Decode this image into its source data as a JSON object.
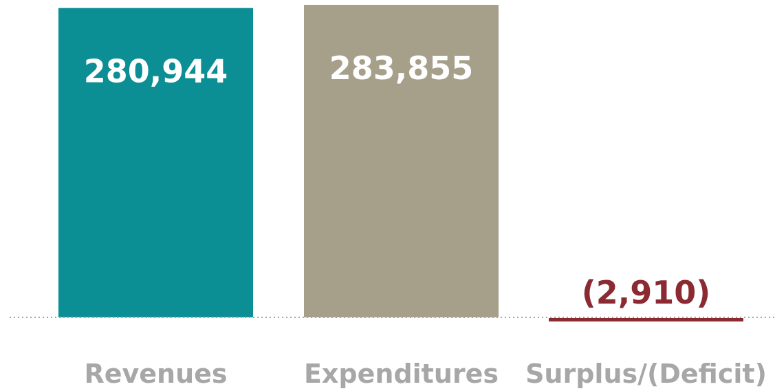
{
  "chart_data": {
    "type": "bar",
    "categories": [
      "Revenues",
      "Expenditures",
      "Surplus/(Deficit)"
    ],
    "values": [
      280944,
      283855,
      -2910
    ],
    "value_labels": [
      "280,944",
      "283,855",
      "(2,910)"
    ],
    "ylim": [
      -2910,
      283855
    ],
    "grid": false,
    "legend": "none",
    "colors": {
      "revenues": "#0b8e94",
      "expenditures": "#a69f89",
      "deficit": "#8c2a32",
      "baseline": "#a5a5a5",
      "bar_text": "#ffffff",
      "category_text": "#a7a7a7"
    }
  }
}
